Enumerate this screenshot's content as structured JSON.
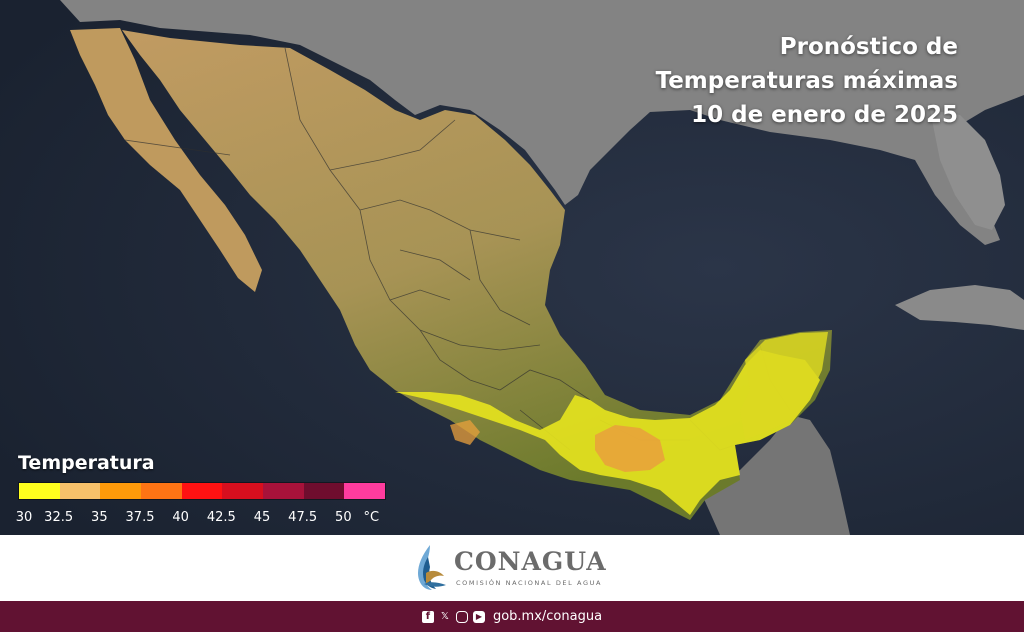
{
  "map": {
    "title_lines": [
      "Pronóstico de",
      "Temperaturas máximas",
      "10 de enero de 2025"
    ],
    "legend": {
      "title": "Temperatura",
      "labels": [
        "30",
        "32.5",
        "35",
        "37.5",
        "40",
        "42.5",
        "45",
        "47.5",
        "50",
        "°C"
      ],
      "colors": [
        "#ffff1e",
        "#f7c16a",
        "#ff9a0a",
        "#ff7414",
        "#ff1212",
        "#d70f1e",
        "#a8123a",
        "#6f0d2e",
        "#ff3c9e"
      ]
    },
    "colors": {
      "ocean": "#1f2837",
      "land_outside": "#8a8a8a",
      "mexico_north": "#b9955a",
      "mexico_south": "#6f7a2c",
      "hot_zone": "#e6e51f",
      "warm_zone": "#e9a13f"
    }
  },
  "logo": {
    "name": "CONAGUA",
    "subtitle": "COMISIÓN NACIONAL DEL AGUA"
  },
  "footer": {
    "url": "gob.mx/conagua",
    "icons": [
      "facebook-icon",
      "x-icon",
      "instagram-icon",
      "youtube-icon"
    ],
    "color": "#611232"
  }
}
